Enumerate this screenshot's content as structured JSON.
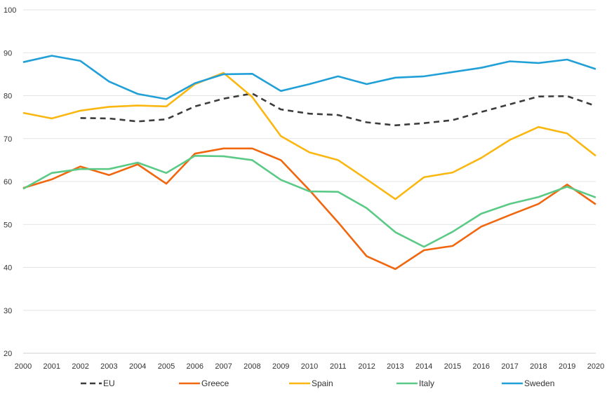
{
  "chart_data": {
    "type": "line",
    "title": "",
    "xlabel": "",
    "ylabel": "",
    "x": [
      "2000",
      "2001",
      "2002",
      "2003",
      "2004",
      "2005",
      "2006",
      "2007",
      "2008",
      "2009",
      "2010",
      "2011",
      "2012",
      "2013",
      "2014",
      "2015",
      "2016",
      "2017",
      "2018",
      "2019",
      "2020"
    ],
    "ylim": [
      20,
      100
    ],
    "yticks": [
      "20",
      "30",
      "40",
      "50",
      "60",
      "70",
      "80",
      "90",
      "100"
    ],
    "grid": "horizontal",
    "legend_position": "bottom",
    "series": [
      {
        "name": "EU",
        "color": "#3c3c3c",
        "dash": true,
        "values": [
          null,
          null,
          74.8,
          74.7,
          74.0,
          74.5,
          77.5,
          79.3,
          80.5,
          76.8,
          75.8,
          75.5,
          73.8,
          73.1,
          73.6,
          74.3,
          76.2,
          78.0,
          79.8,
          79.9,
          77.6
        ]
      },
      {
        "name": "Greece",
        "color": "#f0670f",
        "dash": false,
        "values": [
          58.5,
          60.5,
          63.5,
          61.5,
          64.0,
          59.5,
          66.5,
          67.7,
          67.7,
          65.0,
          58.0,
          50.5,
          42.6,
          39.6,
          44.0,
          45.0,
          49.5,
          52.2,
          54.8,
          59.3,
          54.7
        ]
      },
      {
        "name": "Spain",
        "color": "#fab711",
        "dash": false,
        "values": [
          76.0,
          74.7,
          76.5,
          77.4,
          77.7,
          77.5,
          82.7,
          85.3,
          79.7,
          70.6,
          66.8,
          65.0,
          60.5,
          55.9,
          61.0,
          62.1,
          65.5,
          69.7,
          72.7,
          71.2,
          66.0
        ]
      },
      {
        "name": "Italy",
        "color": "#5bca86",
        "dash": false,
        "values": [
          58.3,
          62.0,
          62.9,
          62.9,
          64.4,
          62.0,
          66.0,
          65.9,
          65.0,
          60.4,
          57.7,
          57.6,
          53.8,
          48.2,
          44.8,
          48.3,
          52.5,
          54.8,
          56.4,
          58.8,
          56.3
        ]
      },
      {
        "name": "Sweden",
        "color": "#21a0d8",
        "dash": false,
        "values": [
          87.8,
          89.3,
          88.1,
          83.3,
          80.4,
          79.2,
          82.9,
          85.0,
          85.1,
          81.1,
          82.7,
          84.5,
          82.7,
          84.2,
          84.5,
          85.5,
          86.5,
          88.0,
          87.6,
          88.4,
          86.2
        ]
      }
    ]
  }
}
